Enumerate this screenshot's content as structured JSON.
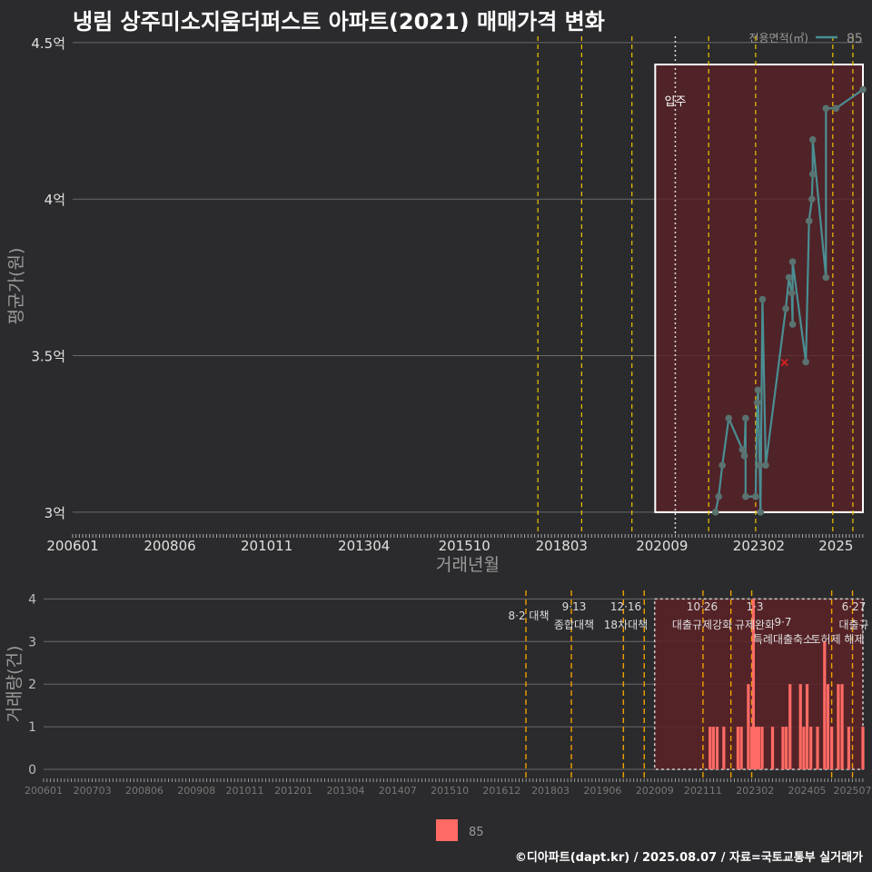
{
  "title": "냉림 상주미소지움더퍼스트 아파트(2021) 매매가격 변화",
  "footer": "©디아파트(dapt.kr) / 2025.08.07 / 자료=국토교통부 실거래가",
  "colors": {
    "background": "#2b2b2d",
    "series": "#4a8f93",
    "point": "#5a7270",
    "bar": "#ff6a64",
    "policy_line": "#f0c400",
    "highlight_fill": "#5c2227",
    "red_marker": "#e02020"
  },
  "chart_data": [
    {
      "type": "line",
      "title": "냉림 상주미소지움더퍼스트 아파트(2021) 매매가격 변화",
      "xlabel": "거래년월",
      "ylabel": "평균가(원)",
      "legend": {
        "title": "전용면적(㎡)",
        "entries": [
          "85"
        ],
        "position": "top-right"
      },
      "x_range": [
        2006.0,
        2025.67
      ],
      "ylim": [
        2.93,
        4.52
      ],
      "yticks": [
        3.0,
        3.5,
        4.0,
        4.5
      ],
      "ytick_labels": [
        "3억",
        "3.5억",
        "4억",
        "4.5억"
      ],
      "xtick_values": [
        2006.0,
        2008.42,
        2010.83,
        2013.25,
        2015.75,
        2018.17,
        2020.67,
        2023.08,
        2025.0
      ],
      "xtick_labels": [
        "200601",
        "200806",
        "201011",
        "201304",
        "201510",
        "201803",
        "202009",
        "202302",
        "2025"
      ],
      "annotation": {
        "label": "입주",
        "x": 2021.0
      },
      "highlight_box": {
        "x_start": 2020.5,
        "x_end": 2025.67,
        "y_start": 3.0,
        "y_end": 4.43
      },
      "policy_lines": [
        2017.58,
        2018.67,
        2019.92,
        2021.83,
        2023.0,
        2024.92,
        2025.42
      ],
      "series": [
        {
          "name": "85",
          "points": [
            [
              2022.0,
              3.0
            ],
            [
              2022.08,
              3.05
            ],
            [
              2022.17,
              3.15
            ],
            [
              2022.33,
              3.3
            ],
            [
              2022.67,
              3.2
            ],
            [
              2022.72,
              3.18
            ],
            [
              2022.75,
              3.3
            ],
            [
              2022.75,
              3.05
            ],
            [
              2023.0,
              3.05
            ],
            [
              2023.04,
              3.35
            ],
            [
              2023.06,
              3.39
            ],
            [
              2023.1,
              3.15
            ],
            [
              2023.12,
              3.0
            ],
            [
              2023.17,
              3.68
            ],
            [
              2023.25,
              3.15
            ],
            [
              2023.75,
              3.65
            ],
            [
              2023.83,
              3.75
            ],
            [
              2023.92,
              3.6
            ],
            [
              2023.92,
              3.8
            ],
            [
              2023.9,
              3.7
            ],
            [
              2024.25,
              3.48
            ],
            [
              2024.33,
              3.93
            ],
            [
              2024.4,
              4.0
            ],
            [
              2024.42,
              4.08
            ],
            [
              2024.42,
              4.19
            ],
            [
              2024.75,
              3.75
            ],
            [
              2024.75,
              4.29
            ],
            [
              2025.0,
              4.29
            ],
            [
              2025.67,
              4.35
            ]
          ]
        },
        {
          "name": "cancelled",
          "points": [
            [
              2023.72,
              3.48
            ]
          ]
        }
      ]
    },
    {
      "type": "bar",
      "xlabel": "",
      "ylabel": "거래량(건)",
      "legend": {
        "entries": [
          "85"
        ],
        "position": "bottom"
      },
      "ylim": [
        0,
        4.2
      ],
      "yticks": [
        0,
        1,
        2,
        3,
        4
      ],
      "xtick_values": [
        2006.0,
        2007.17,
        2008.42,
        2009.67,
        2010.83,
        2012.0,
        2013.25,
        2014.5,
        2015.75,
        2017.0,
        2018.17,
        2019.42,
        2020.67,
        2021.83,
        2023.08,
        2024.33,
        2025.42
      ],
      "xtick_labels": [
        "200601",
        "200703",
        "200806",
        "200908",
        "201011",
        "201201",
        "201304",
        "201407",
        "201510",
        "201612",
        "201803",
        "201906",
        "202009",
        "202111",
        "202302",
        "202405",
        "202507"
      ],
      "highlight_box": {
        "x_start": 2020.67,
        "x_end": 2025.67
      },
      "policy_lines": [
        2017.58,
        2018.67,
        2019.92,
        2020.42,
        2021.83,
        2022.5,
        2023.0,
        2024.92,
        2025.42
      ],
      "policy_labels": [
        {
          "date": "",
          "name": "8·2 대책"
        },
        {
          "date": "9·13",
          "name": "종합대책"
        },
        {
          "date": "12·16",
          "name": "18차대책"
        },
        {
          "date": "10·26",
          "name": "대출규제강화"
        },
        {
          "date": "1·3",
          "name": "규제완화"
        },
        {
          "date": "9·7",
          "name": "특례대출축소"
        },
        {
          "date": "",
          "name": "토허제 해제"
        },
        {
          "date": "6·27",
          "name": "대출규"
        }
      ],
      "bars": [
        {
          "x": 2022.0,
          "value": 1
        },
        {
          "x": 2022.08,
          "value": 1
        },
        {
          "x": 2022.17,
          "value": 1
        },
        {
          "x": 2022.33,
          "value": 1
        },
        {
          "x": 2022.67,
          "value": 1
        },
        {
          "x": 2022.75,
          "value": 1
        },
        {
          "x": 2023.0,
          "value": 1
        },
        {
          "x": 2023.04,
          "value": 4
        },
        {
          "x": 2023.08,
          "value": 1
        },
        {
          "x": 2023.12,
          "value": 1
        },
        {
          "x": 2023.17,
          "value": 1
        },
        {
          "x": 2023.25,
          "value": 1
        },
        {
          "x": 2022.92,
          "value": 2
        },
        {
          "x": 2023.5,
          "value": 1
        },
        {
          "x": 2023.75,
          "value": 1
        },
        {
          "x": 2023.83,
          "value": 1
        },
        {
          "x": 2023.92,
          "value": 2
        },
        {
          "x": 2024.17,
          "value": 2
        },
        {
          "x": 2024.25,
          "value": 1
        },
        {
          "x": 2024.33,
          "value": 2
        },
        {
          "x": 2024.42,
          "value": 1
        },
        {
          "x": 2024.58,
          "value": 1
        },
        {
          "x": 2024.75,
          "value": 3
        },
        {
          "x": 2024.83,
          "value": 2
        },
        {
          "x": 2024.92,
          "value": 1
        },
        {
          "x": 2025.08,
          "value": 2
        },
        {
          "x": 2025.17,
          "value": 2
        },
        {
          "x": 2025.33,
          "value": 1
        },
        {
          "x": 2025.67,
          "value": 1
        }
      ]
    }
  ]
}
